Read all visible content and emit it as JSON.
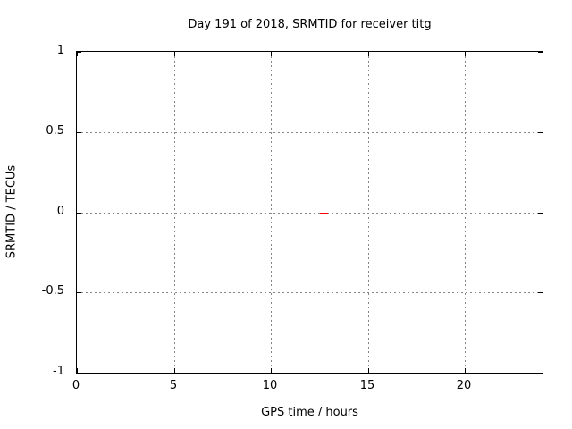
{
  "window": {
    "background": "#ffffff"
  },
  "chart_data": {
    "type": "scatter",
    "title": "Day 191 of 2018, SRMTID for receiver titg",
    "xlabel": "GPS time / hours",
    "ylabel": "SRMTID / TECUs",
    "xlim": [
      0,
      24
    ],
    "ylim": [
      -1,
      1
    ],
    "xticks": [
      0,
      5,
      10,
      15,
      20
    ],
    "xtick_labels": [
      "0",
      "5",
      "10",
      "15",
      "20"
    ],
    "yticks": [
      1,
      0.5,
      0,
      -0.5,
      -1
    ],
    "ytick_labels": [
      "1",
      "0.5",
      "0",
      "-0.5",
      "-1"
    ],
    "grid": "dotted",
    "legend_position": "none",
    "series": [
      {
        "name": "SRMTID",
        "marker": "plus",
        "color": "#ff0000",
        "points": [
          {
            "x": 12.7,
            "y": 0.0
          }
        ]
      }
    ],
    "colors": {
      "background": "#ffffff",
      "border": "#000000",
      "grid": "#868686",
      "text": "#000000",
      "point": "#ff0000"
    }
  }
}
